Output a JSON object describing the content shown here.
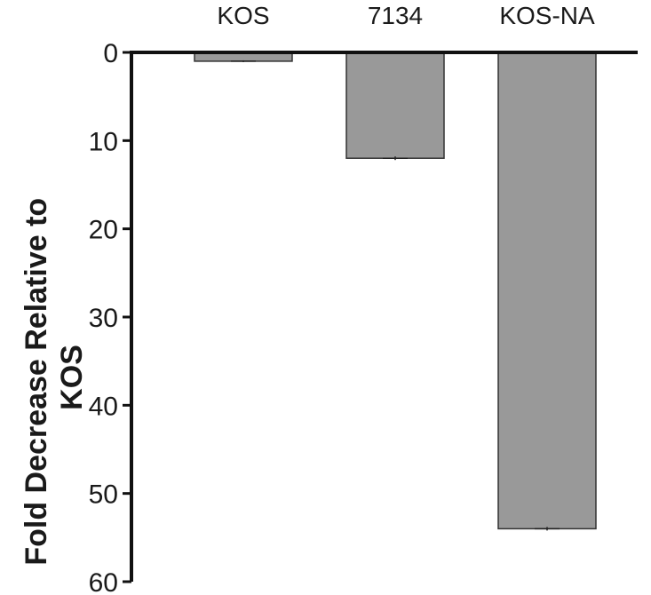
{
  "chart_data": {
    "type": "bar",
    "categories": [
      "KOS",
      "7134",
      "KOS-NA"
    ],
    "values": [
      1,
      12,
      54
    ],
    "errors": [
      0.1,
      0.2,
      0.2
    ],
    "ylabel_line1": "Fold Decrease Relative to",
    "ylabel_line2": "KOS",
    "ylim": [
      0,
      60
    ],
    "y_inverted": true,
    "yticks": [
      "0",
      "10",
      "20",
      "30",
      "40",
      "50",
      "60"
    ],
    "category_axis_position": "top",
    "grid": false,
    "colors": {
      "bar": "#999999",
      "bar_stroke": "#333333",
      "axis": "#111111",
      "text": "#1a1a1a"
    }
  }
}
